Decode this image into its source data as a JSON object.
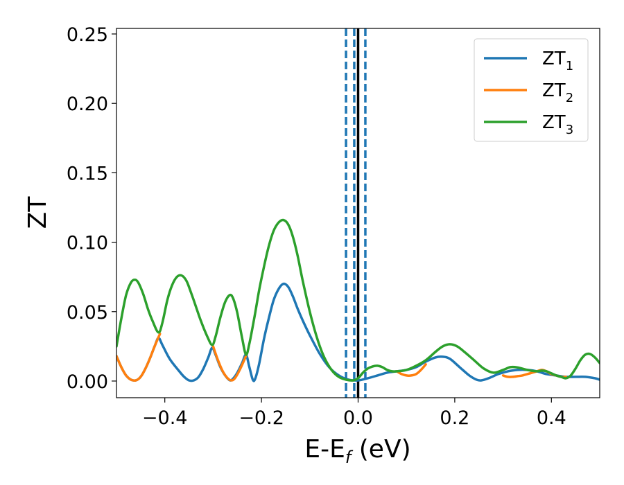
{
  "chart_data": {
    "type": "line",
    "xlabel": "E-E",
    "xlabel_sub": "f",
    "xlabel_unit": " (eV)",
    "ylabel": "ZT",
    "xlim": [
      -0.5,
      0.5
    ],
    "ylim": [
      -0.012,
      0.254
    ],
    "xticks": [
      -0.4,
      -0.2,
      0.0,
      0.2,
      0.4
    ],
    "xtick_labels": [
      "−0.4",
      "−0.2",
      "0.0",
      "0.2",
      "0.4"
    ],
    "yticks": [
      0.0,
      0.05,
      0.1,
      0.15,
      0.2,
      0.25
    ],
    "ytick_labels": [
      "0.00",
      "0.05",
      "0.10",
      "0.15",
      "0.20",
      "0.25"
    ],
    "grid": false,
    "legend_position": "top-right",
    "vertical_lines": [
      {
        "x": 0.0,
        "style": "solid",
        "color": "#000000"
      },
      {
        "x": -0.025,
        "style": "dashed",
        "color": "#1f77b4"
      },
      {
        "x": -0.008,
        "style": "dashed",
        "color": "#1f77b4"
      },
      {
        "x": 0.015,
        "style": "dashed",
        "color": "#1f77b4"
      }
    ],
    "series": [
      {
        "name": "ZT",
        "name_sub": "1",
        "color": "#1f77b4",
        "points": [
          [
            -0.5,
            0.018
          ],
          [
            -0.49,
            0.01
          ],
          [
            -0.48,
            0.004
          ],
          [
            -0.47,
            0.001
          ],
          [
            -0.46,
            0.0005
          ],
          [
            -0.45,
            0.003
          ],
          [
            -0.44,
            0.009
          ],
          [
            -0.43,
            0.017
          ],
          [
            -0.42,
            0.026
          ],
          [
            -0.413,
            0.031
          ],
          [
            -0.405,
            0.026
          ],
          [
            -0.39,
            0.016
          ],
          [
            -0.37,
            0.007
          ],
          [
            -0.36,
            0.003
          ],
          [
            -0.35,
            0.0005
          ],
          [
            -0.34,
            0.0005
          ],
          [
            -0.33,
            0.003
          ],
          [
            -0.32,
            0.009
          ],
          [
            -0.31,
            0.017
          ],
          [
            -0.302,
            0.024
          ],
          [
            -0.295,
            0.019
          ],
          [
            -0.285,
            0.01
          ],
          [
            -0.275,
            0.004
          ],
          [
            -0.265,
            0.0005
          ],
          [
            -0.258,
            0.002
          ],
          [
            -0.25,
            0.006
          ],
          [
            -0.24,
            0.013
          ],
          [
            -0.232,
            0.019
          ],
          [
            -0.225,
            0.01
          ],
          [
            -0.218,
            0.001
          ],
          [
            -0.213,
            0.0015
          ],
          [
            -0.205,
            0.012
          ],
          [
            -0.195,
            0.03
          ],
          [
            -0.185,
            0.045
          ],
          [
            -0.175,
            0.058
          ],
          [
            -0.165,
            0.066
          ],
          [
            -0.155,
            0.07
          ],
          [
            -0.145,
            0.068
          ],
          [
            -0.135,
            0.061
          ],
          [
            -0.125,
            0.052
          ],
          [
            -0.115,
            0.044
          ],
          [
            -0.1,
            0.033
          ],
          [
            -0.08,
            0.02
          ],
          [
            -0.06,
            0.01
          ],
          [
            -0.04,
            0.004
          ],
          [
            -0.02,
            0.001
          ],
          [
            0.0,
            0.0005
          ],
          [
            0.02,
            0.002
          ],
          [
            0.04,
            0.004
          ],
          [
            0.06,
            0.006
          ],
          [
            0.08,
            0.007
          ],
          [
            0.1,
            0.008
          ],
          [
            0.12,
            0.01
          ],
          [
            0.14,
            0.014
          ],
          [
            0.16,
            0.017
          ],
          [
            0.175,
            0.0175
          ],
          [
            0.19,
            0.016
          ],
          [
            0.21,
            0.01
          ],
          [
            0.23,
            0.004
          ],
          [
            0.245,
            0.001
          ],
          [
            0.255,
            0.0005
          ],
          [
            0.27,
            0.002
          ],
          [
            0.29,
            0.005
          ],
          [
            0.31,
            0.007
          ],
          [
            0.33,
            0.008
          ],
          [
            0.35,
            0.008
          ],
          [
            0.37,
            0.007
          ],
          [
            0.39,
            0.005
          ],
          [
            0.41,
            0.004
          ],
          [
            0.43,
            0.003
          ],
          [
            0.45,
            0.003
          ],
          [
            0.47,
            0.003
          ],
          [
            0.49,
            0.002
          ],
          [
            0.5,
            0.001
          ]
        ]
      },
      {
        "name": "ZT",
        "name_sub": "2",
        "color": "#ff7f0e",
        "points": [
          [
            -0.5,
            0.018
          ],
          [
            -0.49,
            0.01
          ],
          [
            -0.48,
            0.004
          ],
          [
            -0.47,
            0.001
          ],
          [
            -0.46,
            0.0005
          ],
          [
            -0.45,
            0.003
          ],
          [
            -0.44,
            0.009
          ],
          [
            -0.43,
            0.017
          ],
          [
            -0.42,
            0.026
          ],
          [
            -0.41,
            0.034
          ],
          [
            -0.3,
            0.025
          ],
          [
            -0.29,
            0.015
          ],
          [
            -0.28,
            0.007
          ],
          [
            -0.27,
            0.002
          ],
          [
            -0.262,
            0.0005
          ],
          [
            -0.255,
            0.002
          ],
          [
            -0.245,
            0.008
          ],
          [
            -0.232,
            0.018
          ],
          [
            0.08,
            0.007
          ],
          [
            0.09,
            0.005
          ],
          [
            0.1,
            0.004
          ],
          [
            0.11,
            0.004
          ],
          [
            0.12,
            0.005
          ],
          [
            0.13,
            0.008
          ],
          [
            0.14,
            0.012
          ],
          [
            0.3,
            0.004
          ],
          [
            0.31,
            0.003
          ],
          [
            0.32,
            0.003
          ],
          [
            0.33,
            0.0035
          ],
          [
            0.34,
            0.004
          ],
          [
            0.35,
            0.005
          ],
          [
            0.36,
            0.006
          ],
          [
            0.37,
            0.007
          ],
          [
            0.38,
            0.008
          ],
          [
            0.39,
            0.007
          ],
          [
            0.4,
            0.005
          ],
          [
            0.41,
            0.004
          ],
          [
            0.42,
            0.003
          ],
          [
            0.43,
            0.003
          ]
        ]
      },
      {
        "name": "ZT",
        "name_sub": "3",
        "color": "#2ca02c",
        "points": [
          [
            -0.5,
            0.025
          ],
          [
            -0.49,
            0.045
          ],
          [
            -0.48,
            0.062
          ],
          [
            -0.47,
            0.071
          ],
          [
            -0.462,
            0.073
          ],
          [
            -0.455,
            0.071
          ],
          [
            -0.445,
            0.063
          ],
          [
            -0.435,
            0.052
          ],
          [
            -0.425,
            0.043
          ],
          [
            -0.413,
            0.035
          ],
          [
            -0.405,
            0.042
          ],
          [
            -0.395,
            0.058
          ],
          [
            -0.385,
            0.069
          ],
          [
            -0.375,
            0.075
          ],
          [
            -0.365,
            0.076
          ],
          [
            -0.355,
            0.072
          ],
          [
            -0.345,
            0.063
          ],
          [
            -0.335,
            0.053
          ],
          [
            -0.325,
            0.043
          ],
          [
            -0.312,
            0.032
          ],
          [
            -0.302,
            0.026
          ],
          [
            -0.295,
            0.032
          ],
          [
            -0.285,
            0.046
          ],
          [
            -0.275,
            0.057
          ],
          [
            -0.265,
            0.062
          ],
          [
            -0.258,
            0.059
          ],
          [
            -0.25,
            0.049
          ],
          [
            -0.24,
            0.031
          ],
          [
            -0.232,
            0.019
          ],
          [
            -0.225,
            0.027
          ],
          [
            -0.215,
            0.045
          ],
          [
            -0.205,
            0.065
          ],
          [
            -0.195,
            0.082
          ],
          [
            -0.185,
            0.097
          ],
          [
            -0.175,
            0.108
          ],
          [
            -0.165,
            0.114
          ],
          [
            -0.155,
            0.116
          ],
          [
            -0.145,
            0.113
          ],
          [
            -0.135,
            0.104
          ],
          [
            -0.125,
            0.09
          ],
          [
            -0.115,
            0.073
          ],
          [
            -0.1,
            0.05
          ],
          [
            -0.085,
            0.031
          ],
          [
            -0.07,
            0.017
          ],
          [
            -0.055,
            0.008
          ],
          [
            -0.04,
            0.003
          ],
          [
            -0.025,
            0.001
          ],
          [
            -0.01,
            0.0005
          ],
          [
            0.0,
            0.002
          ],
          [
            0.01,
            0.006
          ],
          [
            0.02,
            0.009
          ],
          [
            0.03,
            0.0105
          ],
          [
            0.04,
            0.011
          ],
          [
            0.05,
            0.01
          ],
          [
            0.06,
            0.008
          ],
          [
            0.07,
            0.007
          ],
          [
            0.08,
            0.007
          ],
          [
            0.1,
            0.008
          ],
          [
            0.12,
            0.011
          ],
          [
            0.14,
            0.015
          ],
          [
            0.16,
            0.021
          ],
          [
            0.175,
            0.025
          ],
          [
            0.19,
            0.0265
          ],
          [
            0.205,
            0.025
          ],
          [
            0.22,
            0.021
          ],
          [
            0.24,
            0.015
          ],
          [
            0.26,
            0.009
          ],
          [
            0.28,
            0.006
          ],
          [
            0.3,
            0.008
          ],
          [
            0.315,
            0.01
          ],
          [
            0.33,
            0.0098
          ],
          [
            0.35,
            0.008
          ],
          [
            0.37,
            0.007
          ],
          [
            0.38,
            0.0075
          ],
          [
            0.39,
            0.007
          ],
          [
            0.41,
            0.004
          ],
          [
            0.42,
            0.003
          ],
          [
            0.43,
            0.002
          ],
          [
            0.44,
            0.004
          ],
          [
            0.45,
            0.009
          ],
          [
            0.46,
            0.015
          ],
          [
            0.47,
            0.019
          ],
          [
            0.48,
            0.0195
          ],
          [
            0.49,
            0.017
          ],
          [
            0.5,
            0.013
          ]
        ]
      }
    ]
  }
}
